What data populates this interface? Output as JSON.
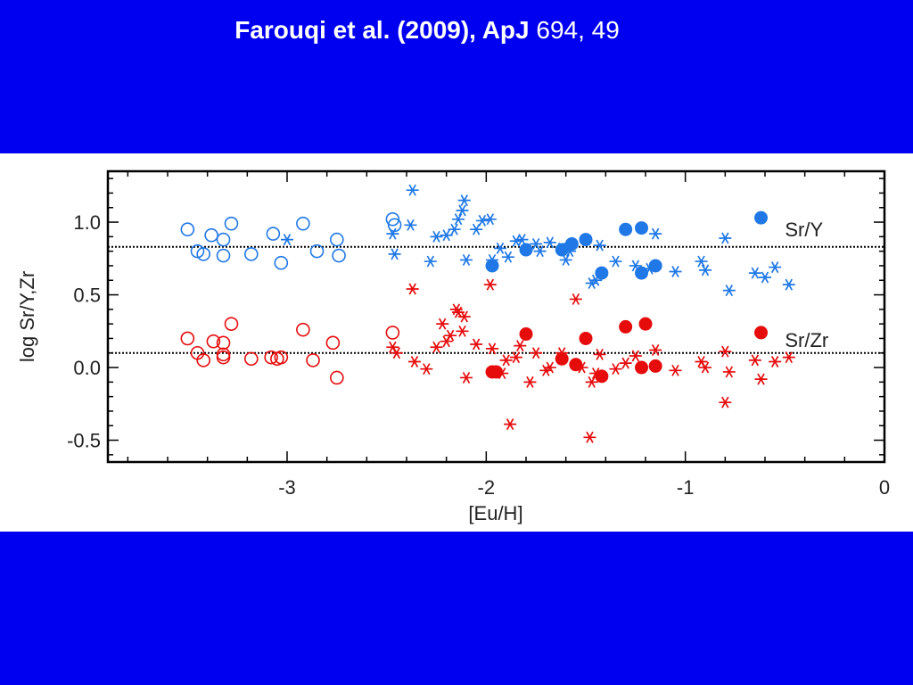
{
  "slide": {
    "title_bold": "Farouqi et al. (2009), ApJ",
    "title_plain": " 694, 49"
  },
  "colors": {
    "background": "#0000f0",
    "blue": "#1f78e6",
    "red": "#e60c0c"
  },
  "chart_data": {
    "type": "scatter",
    "xlabel": "[Eu/H]",
    "ylabel": "log Sr/Y,Zr",
    "xlim": [
      -3.9,
      0.0
    ],
    "ylim": [
      -0.65,
      1.35
    ],
    "xticks": [
      -3,
      -2,
      -1,
      0
    ],
    "xtick_labels": [
      "-3",
      "-2",
      "-1",
      "0"
    ],
    "yticks": [
      -0.5,
      0.0,
      0.5,
      1.0
    ],
    "ytick_labels": [
      "-0.5",
      "0.0",
      "0.5",
      "1.0"
    ],
    "grid": false,
    "reference_lines": [
      0.83,
      0.1
    ],
    "annotations": [
      {
        "text": "Sr/Y",
        "x": -0.5,
        "y": 0.95
      },
      {
        "text": "Sr/Zr",
        "x": -0.5,
        "y": 0.19
      }
    ],
    "series": [
      {
        "marker": "open-circle",
        "color": "#1f78e6",
        "points": [
          [
            -3.5,
            0.95
          ],
          [
            -3.45,
            0.8
          ],
          [
            -3.42,
            0.78
          ],
          [
            -3.38,
            0.91
          ],
          [
            -3.32,
            0.88
          ],
          [
            -3.32,
            0.77
          ],
          [
            -3.28,
            0.99
          ],
          [
            -3.18,
            0.78
          ],
          [
            -3.07,
            0.92
          ],
          [
            -3.03,
            0.72
          ],
          [
            -2.92,
            0.99
          ],
          [
            -2.85,
            0.8
          ],
          [
            -2.75,
            0.88
          ],
          [
            -2.74,
            0.77
          ],
          [
            -2.47,
            1.02
          ],
          [
            -2.46,
            0.98
          ]
        ]
      },
      {
        "marker": "asterisk",
        "color": "#1f78e6",
        "points": [
          [
            -3.0,
            0.88
          ],
          [
            -2.47,
            0.92
          ],
          [
            -2.46,
            0.78
          ],
          [
            -2.37,
            1.22
          ],
          [
            -2.38,
            0.98
          ],
          [
            -2.28,
            0.73
          ],
          [
            -2.25,
            0.9
          ],
          [
            -2.2,
            0.91
          ],
          [
            -2.16,
            0.95
          ],
          [
            -2.14,
            1.02
          ],
          [
            -2.12,
            1.08
          ],
          [
            -2.11,
            1.15
          ],
          [
            -2.1,
            0.74
          ],
          [
            -2.05,
            0.95
          ],
          [
            -2.02,
            1.01
          ],
          [
            -1.98,
            1.02
          ],
          [
            -1.97,
            0.74
          ],
          [
            -1.93,
            0.82
          ],
          [
            -1.89,
            0.76
          ],
          [
            -1.85,
            0.87
          ],
          [
            -1.82,
            0.88
          ],
          [
            -1.75,
            0.85
          ],
          [
            -1.73,
            0.8
          ],
          [
            -1.68,
            0.86
          ],
          [
            -1.62,
            0.82
          ],
          [
            -1.6,
            0.74
          ],
          [
            -1.58,
            0.8
          ],
          [
            -1.5,
            0.88
          ],
          [
            -1.47,
            0.58
          ],
          [
            -1.45,
            0.6
          ],
          [
            -1.43,
            0.84
          ],
          [
            -1.35,
            0.73
          ],
          [
            -1.25,
            0.7
          ],
          [
            -1.18,
            0.68
          ],
          [
            -1.15,
            0.92
          ],
          [
            -1.05,
            0.66
          ],
          [
            -0.92,
            0.73
          ],
          [
            -0.9,
            0.67
          ],
          [
            -0.8,
            0.89
          ],
          [
            -0.78,
            0.53
          ],
          [
            -0.65,
            0.65
          ],
          [
            -0.6,
            0.62
          ],
          [
            -0.55,
            0.69
          ],
          [
            -0.48,
            0.57
          ]
        ]
      },
      {
        "marker": "filled-circle",
        "color": "#1f78e6",
        "points": [
          [
            -1.97,
            0.7
          ],
          [
            -1.8,
            0.81
          ],
          [
            -1.62,
            0.81
          ],
          [
            -1.57,
            0.85
          ],
          [
            -1.5,
            0.88
          ],
          [
            -1.42,
            0.65
          ],
          [
            -1.3,
            0.95
          ],
          [
            -1.22,
            0.96
          ],
          [
            -1.22,
            0.65
          ],
          [
            -1.15,
            0.7
          ],
          [
            -0.62,
            1.03
          ]
        ]
      },
      {
        "marker": "open-circle",
        "color": "#e60c0c",
        "points": [
          [
            -3.5,
            0.2
          ],
          [
            -3.45,
            0.1
          ],
          [
            -3.42,
            0.05
          ],
          [
            -3.37,
            0.18
          ],
          [
            -3.32,
            0.17
          ],
          [
            -3.32,
            0.09
          ],
          [
            -3.32,
            0.07
          ],
          [
            -3.28,
            0.3
          ],
          [
            -3.18,
            0.06
          ],
          [
            -3.08,
            0.07
          ],
          [
            -3.05,
            0.06
          ],
          [
            -3.03,
            0.07
          ],
          [
            -2.92,
            0.26
          ],
          [
            -2.87,
            0.05
          ],
          [
            -2.77,
            0.17
          ],
          [
            -2.75,
            -0.07
          ],
          [
            -2.47,
            0.24
          ]
        ]
      },
      {
        "marker": "asterisk",
        "color": "#e60c0c",
        "points": [
          [
            -2.47,
            0.14
          ],
          [
            -2.45,
            0.1
          ],
          [
            -2.37,
            0.54
          ],
          [
            -2.36,
            0.04
          ],
          [
            -2.3,
            -0.01
          ],
          [
            -2.25,
            0.14
          ],
          [
            -2.22,
            0.3
          ],
          [
            -2.2,
            0.18
          ],
          [
            -2.18,
            0.22
          ],
          [
            -2.15,
            0.4
          ],
          [
            -2.14,
            0.38
          ],
          [
            -2.12,
            0.25
          ],
          [
            -2.11,
            0.35
          ],
          [
            -2.1,
            -0.07
          ],
          [
            -2.05,
            0.16
          ],
          [
            -1.98,
            0.57
          ],
          [
            -1.97,
            0.13
          ],
          [
            -1.92,
            -0.04
          ],
          [
            -1.9,
            0.05
          ],
          [
            -1.88,
            -0.39
          ],
          [
            -1.85,
            0.07
          ],
          [
            -1.83,
            0.15
          ],
          [
            -1.78,
            -0.1
          ],
          [
            -1.75,
            0.1
          ],
          [
            -1.7,
            -0.02
          ],
          [
            -1.68,
            0.0
          ],
          [
            -1.62,
            0.1
          ],
          [
            -1.55,
            0.47
          ],
          [
            -1.52,
            0.0
          ],
          [
            -1.48,
            -0.48
          ],
          [
            -1.47,
            -0.1
          ],
          [
            -1.45,
            -0.04
          ],
          [
            -1.43,
            0.09
          ],
          [
            -1.35,
            -0.01
          ],
          [
            -1.3,
            0.03
          ],
          [
            -1.25,
            0.08
          ],
          [
            -1.15,
            0.12
          ],
          [
            -1.05,
            -0.02
          ],
          [
            -0.92,
            0.04
          ],
          [
            -0.9,
            0.0
          ],
          [
            -0.8,
            0.11
          ],
          [
            -0.8,
            -0.24
          ],
          [
            -0.78,
            -0.03
          ],
          [
            -0.65,
            0.05
          ],
          [
            -0.62,
            -0.08
          ],
          [
            -0.55,
            0.04
          ],
          [
            -0.48,
            0.07
          ]
        ]
      },
      {
        "marker": "filled-circle",
        "color": "#e60c0c",
        "points": [
          [
            -1.97,
            -0.03
          ],
          [
            -1.95,
            -0.03
          ],
          [
            -1.8,
            0.23
          ],
          [
            -1.62,
            0.06
          ],
          [
            -1.55,
            0.02
          ],
          [
            -1.5,
            0.2
          ],
          [
            -1.42,
            -0.06
          ],
          [
            -1.3,
            0.28
          ],
          [
            -1.2,
            0.3
          ],
          [
            -1.22,
            0.0
          ],
          [
            -1.15,
            0.01
          ],
          [
            -0.62,
            0.24
          ]
        ]
      }
    ]
  }
}
